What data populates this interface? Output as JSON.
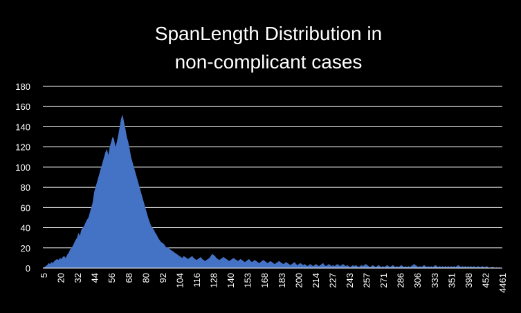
{
  "chart_data": {
    "type": "area",
    "title_lines": [
      "SpanLength Distribution in",
      "non-complicant cases"
    ],
    "xlabel": "",
    "ylabel": "",
    "ylim": [
      0,
      180
    ],
    "yticks": [
      0,
      20,
      40,
      60,
      80,
      100,
      120,
      140,
      160,
      180
    ],
    "x_tick_labels": [
      "5",
      "20",
      "32",
      "44",
      "56",
      "68",
      "80",
      "92",
      "104",
      "116",
      "128",
      "140",
      "153",
      "168",
      "183",
      "200",
      "214",
      "227",
      "243",
      "257",
      "271",
      "286",
      "306",
      "333",
      "351",
      "398",
      "452",
      "4461"
    ],
    "grid": true,
    "legend": "none",
    "series": [
      {
        "color": "#4472C4",
        "values": [
          0,
          1,
          2,
          3,
          5,
          4,
          6,
          5,
          7,
          8,
          9,
          8,
          10,
          9,
          11,
          12,
          10,
          13,
          15,
          18,
          20,
          22,
          25,
          28,
          30,
          35,
          32,
          38,
          40,
          42,
          45,
          48,
          50,
          55,
          60,
          65,
          75,
          80,
          85,
          90,
          95,
          100,
          105,
          110,
          115,
          118,
          112,
          120,
          125,
          130,
          128,
          120,
          125,
          132,
          140,
          148,
          152,
          145,
          138,
          130,
          125,
          118,
          110,
          105,
          100,
          95,
          90,
          85,
          80,
          75,
          70,
          65,
          60,
          55,
          50,
          46,
          42,
          40,
          38,
          35,
          33,
          30,
          28,
          26,
          25,
          24,
          22,
          20,
          21,
          19,
          18,
          17,
          16,
          15,
          14,
          13,
          12,
          11,
          10,
          12,
          11,
          10,
          9,
          10,
          11,
          12,
          10,
          9,
          8,
          9,
          10,
          11,
          9,
          8,
          7,
          8,
          9,
          10,
          12,
          14,
          13,
          12,
          10,
          9,
          8,
          9,
          10,
          11,
          10,
          9,
          8,
          7,
          8,
          9,
          10,
          9,
          8,
          7,
          8,
          9,
          8,
          7,
          6,
          7,
          8,
          9,
          7,
          6,
          7,
          8,
          7,
          6,
          5,
          6,
          7,
          8,
          7,
          6,
          5,
          6,
          7,
          6,
          5,
          4,
          5,
          6,
          7,
          6,
          5,
          4,
          5,
          6,
          5,
          4,
          3,
          4,
          5,
          6,
          4,
          3,
          4,
          5,
          4,
          3,
          4,
          3,
          2,
          3,
          4,
          3,
          2,
          3,
          4,
          3,
          2,
          3,
          4,
          5,
          3,
          2,
          3,
          4,
          3,
          2,
          3,
          2,
          3,
          4,
          3,
          2,
          3,
          4,
          3,
          2,
          3,
          2,
          1,
          2,
          3,
          2,
          3,
          2,
          1,
          2,
          3,
          2,
          3,
          4,
          3,
          2,
          1,
          2,
          3,
          2,
          1,
          2,
          3,
          2,
          1,
          2,
          1,
          2,
          3,
          2,
          1,
          2,
          3,
          2,
          1,
          2,
          1,
          2,
          3,
          2,
          1,
          2,
          1,
          2,
          1,
          2,
          3,
          4,
          3,
          2,
          1,
          2,
          1,
          2,
          3,
          2,
          1,
          2,
          1,
          2,
          1,
          2,
          3,
          2,
          1,
          2,
          1,
          2,
          1,
          2,
          1,
          2,
          1,
          2,
          1,
          2,
          1,
          2,
          3,
          2,
          1,
          2,
          1,
          2,
          1,
          2,
          1,
          2,
          1,
          2,
          1,
          1,
          2,
          1,
          1,
          2,
          1,
          1,
          2,
          1,
          0,
          1,
          1,
          1,
          0,
          1,
          0,
          1,
          0,
          0
        ]
      }
    ]
  }
}
